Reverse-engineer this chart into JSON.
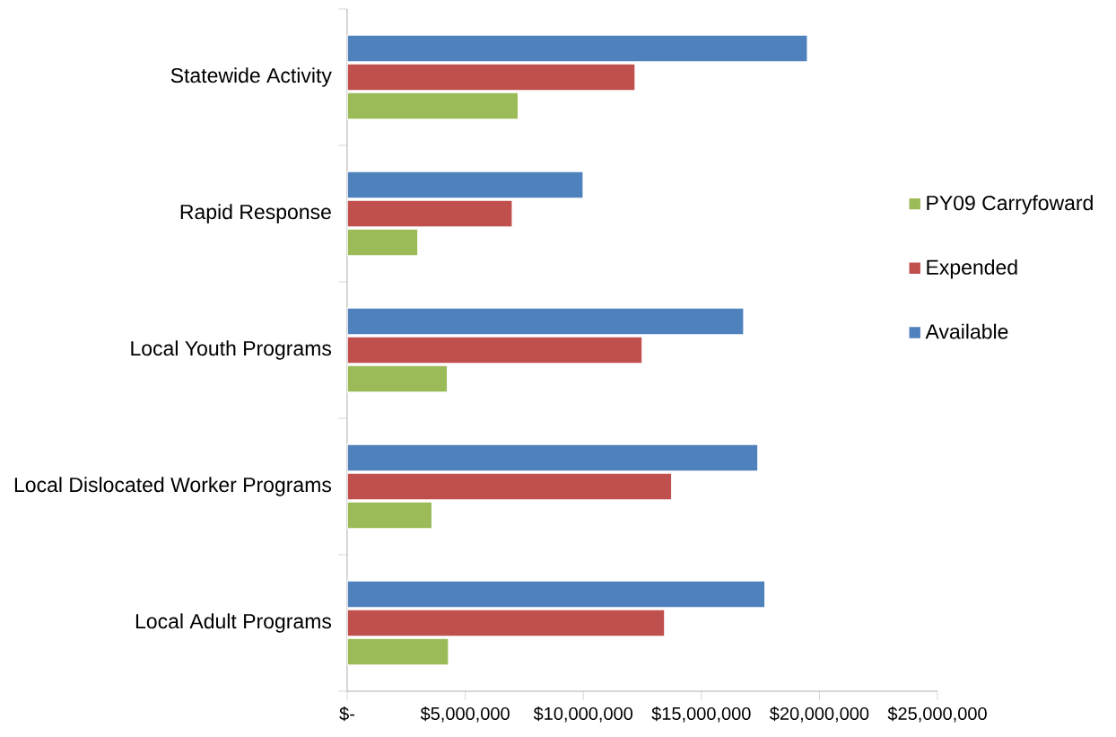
{
  "chart_data": {
    "type": "bar",
    "orientation": "horizontal",
    "categories": [
      "Statewide Activity",
      "Rapid Response",
      "Local Youth Programs",
      "Local Dislocated Worker Programs",
      "Local Adult Programs"
    ],
    "series": [
      {
        "name": "PY09 Carryfoward",
        "color": "#9bbb59",
        "values": [
          7250000,
          3000000,
          4250000,
          3600000,
          4300000
        ]
      },
      {
        "name": "Expended",
        "color": "#c0504d",
        "values": [
          12200000,
          7000000,
          12500000,
          13750000,
          13450000
        ]
      },
      {
        "name": "Available",
        "color": "#4f81bd",
        "values": [
          19500000,
          10000000,
          16800000,
          17400000,
          17700000
        ]
      }
    ],
    "xlim": [
      0,
      25000000
    ],
    "xticks": [
      {
        "value": 0,
        "label": "$-"
      },
      {
        "value": 5000000,
        "label": "$5,000,000"
      },
      {
        "value": 10000000,
        "label": "$10,000,000"
      },
      {
        "value": 15000000,
        "label": "$15,000,000"
      },
      {
        "value": 20000000,
        "label": "$20,000,000"
      },
      {
        "value": 25000000,
        "label": "$25,000,000"
      }
    ],
    "grid": false,
    "legend": "right"
  }
}
